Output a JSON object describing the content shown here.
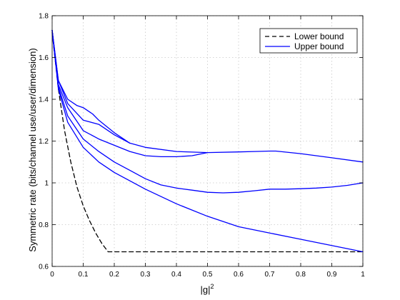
{
  "chart_data": {
    "type": "line",
    "xlabel": "|g|",
    "xlabel_superscript": "2",
    "ylabel": "Symmetric rate (bits/channel use/user/dimension)",
    "xlim": [
      0,
      1
    ],
    "ylim": [
      0.6,
      1.8
    ],
    "xticks": [
      "0",
      "0.1",
      "0.2",
      "0.3",
      "0.4",
      "0.5",
      "0.6",
      "0.7",
      "0.8",
      "0.9",
      "1"
    ],
    "yticks": [
      "0.6",
      "0.8",
      "1",
      "1.2",
      "1.4",
      "1.6",
      "1.8"
    ],
    "grid": true,
    "legend_position": "top-right",
    "legend": [
      {
        "label": "Lower bound",
        "style": "dashed",
        "color": "#000000"
      },
      {
        "label": "Upper bound",
        "style": "solid",
        "color": "#0000ff"
      }
    ],
    "series": [
      {
        "style": "dashed",
        "color": "#000000",
        "x": [
          0,
          0.02,
          0.04,
          0.06,
          0.08,
          0.1,
          0.12,
          0.14,
          0.16,
          0.18,
          0.2,
          0.3,
          0.4,
          0.5,
          0.6,
          0.7,
          0.8,
          0.9,
          1.0
        ],
        "y": [
          1.72,
          1.45,
          1.25,
          1.1,
          0.98,
          0.89,
          0.82,
          0.76,
          0.71,
          0.67,
          0.67,
          0.67,
          0.67,
          0.67,
          0.67,
          0.67,
          0.67,
          0.67,
          0.67
        ]
      },
      {
        "style": "solid",
        "color": "#0000ff",
        "x": [
          0,
          0.02,
          0.05,
          0.1,
          0.15,
          0.2,
          0.3,
          0.4,
          0.5,
          0.6,
          0.7,
          0.8,
          0.9,
          1.0
        ],
        "y": [
          1.73,
          1.45,
          1.29,
          1.17,
          1.1,
          1.05,
          0.97,
          0.9,
          0.84,
          0.79,
          0.76,
          0.73,
          0.7,
          0.67
        ]
      },
      {
        "style": "solid",
        "color": "#0000ff",
        "x": [
          0,
          0.02,
          0.05,
          0.1,
          0.15,
          0.2,
          0.25,
          0.3,
          0.35,
          0.4,
          0.45,
          0.5,
          0.55,
          0.6,
          0.65,
          0.7,
          0.75,
          0.8,
          0.85,
          0.9,
          0.95,
          1.0
        ],
        "y": [
          1.73,
          1.46,
          1.32,
          1.21,
          1.15,
          1.1,
          1.06,
          1.02,
          0.99,
          0.975,
          0.965,
          0.955,
          0.952,
          0.955,
          0.962,
          0.97,
          0.97,
          0.972,
          0.975,
          0.98,
          0.988,
          1.0
        ]
      },
      {
        "style": "solid",
        "color": "#0000ff",
        "x": [
          0,
          0.02,
          0.05,
          0.1,
          0.15,
          0.2,
          0.25,
          0.3,
          0.35,
          0.4,
          0.45,
          0.5
        ],
        "y": [
          1.73,
          1.47,
          1.36,
          1.25,
          1.21,
          1.18,
          1.15,
          1.13,
          1.125,
          1.125,
          1.13,
          1.145
        ]
      },
      {
        "style": "solid",
        "color": "#0000ff",
        "x": [
          0,
          0.02,
          0.05,
          0.1,
          0.15,
          0.2,
          0.25,
          0.3,
          0.4,
          0.5,
          0.6,
          0.65,
          0.7,
          0.72,
          0.8,
          0.9,
          1.0
        ],
        "y": [
          1.73,
          1.49,
          1.38,
          1.3,
          1.28,
          1.23,
          1.19,
          1.17,
          1.15,
          1.145,
          1.148,
          1.15,
          1.152,
          1.152,
          1.14,
          1.12,
          1.1
        ]
      },
      {
        "style": "solid",
        "color": "#0000ff",
        "x": [
          0,
          0.02,
          0.05,
          0.08,
          0.1,
          0.13,
          0.15,
          0.2,
          0.25
        ],
        "y": [
          1.73,
          1.49,
          1.4,
          1.37,
          1.36,
          1.33,
          1.3,
          1.24,
          1.19
        ]
      }
    ]
  }
}
